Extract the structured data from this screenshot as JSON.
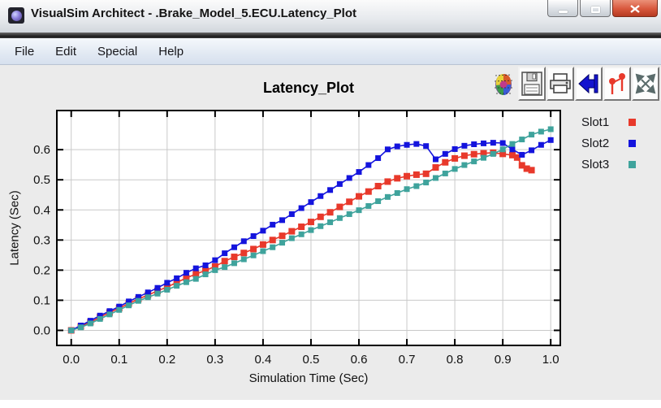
{
  "window": {
    "title": "VisualSim Architect - .Brake_Model_5.ECU.Latency_Plot",
    "controls": {
      "minimize": "minimize",
      "maximize": "maximize",
      "close": "close"
    }
  },
  "menu": {
    "items": [
      "File",
      "Edit",
      "Special",
      "Help"
    ]
  },
  "toolbar": {
    "icons": [
      "palette-icon",
      "save-icon",
      "print-icon",
      "reset-axes-icon",
      "edit-format-icon",
      "fill-plot-icon"
    ]
  },
  "chart_data": {
    "type": "line",
    "title": "Latency_Plot",
    "xlabel": "Simulation Time (Sec)",
    "ylabel": "Latency (Sec)",
    "xlim": [
      -0.03,
      1.02
    ],
    "ylim": [
      -0.05,
      0.73
    ],
    "x_ticks": [
      0.0,
      0.1,
      0.2,
      0.3,
      0.4,
      0.5,
      0.6,
      0.7,
      0.8,
      0.9,
      1.0
    ],
    "y_ticks": [
      0.0,
      0.1,
      0.2,
      0.3,
      0.4,
      0.5,
      0.6
    ],
    "grid": true,
    "legend_position": "right-top",
    "marker": "square",
    "series": [
      {
        "name": "Slot1",
        "color": "#e8392b",
        "points": [
          [
            0.0,
            0.0
          ],
          [
            0.02,
            0.013
          ],
          [
            0.04,
            0.027
          ],
          [
            0.06,
            0.044
          ],
          [
            0.08,
            0.059
          ],
          [
            0.1,
            0.074
          ],
          [
            0.12,
            0.089
          ],
          [
            0.14,
            0.104
          ],
          [
            0.16,
            0.117
          ],
          [
            0.18,
            0.131
          ],
          [
            0.2,
            0.144
          ],
          [
            0.22,
            0.159
          ],
          [
            0.24,
            0.174
          ],
          [
            0.26,
            0.187
          ],
          [
            0.28,
            0.199
          ],
          [
            0.3,
            0.212
          ],
          [
            0.32,
            0.23
          ],
          [
            0.34,
            0.244
          ],
          [
            0.36,
            0.257
          ],
          [
            0.38,
            0.27
          ],
          [
            0.4,
            0.285
          ],
          [
            0.42,
            0.3
          ],
          [
            0.44,
            0.314
          ],
          [
            0.46,
            0.329
          ],
          [
            0.48,
            0.344
          ],
          [
            0.5,
            0.36
          ],
          [
            0.52,
            0.377
          ],
          [
            0.54,
            0.392
          ],
          [
            0.56,
            0.41
          ],
          [
            0.58,
            0.427
          ],
          [
            0.6,
            0.445
          ],
          [
            0.62,
            0.461
          ],
          [
            0.64,
            0.479
          ],
          [
            0.66,
            0.494
          ],
          [
            0.68,
            0.505
          ],
          [
            0.7,
            0.512
          ],
          [
            0.72,
            0.517
          ],
          [
            0.74,
            0.52
          ],
          [
            0.76,
            0.541
          ],
          [
            0.78,
            0.558
          ],
          [
            0.8,
            0.571
          ],
          [
            0.82,
            0.58
          ],
          [
            0.84,
            0.585
          ],
          [
            0.86,
            0.588
          ],
          [
            0.88,
            0.59
          ],
          [
            0.9,
            0.586
          ],
          [
            0.92,
            0.582
          ],
          [
            0.93,
            0.574
          ],
          [
            0.94,
            0.548
          ],
          [
            0.95,
            0.537
          ],
          [
            0.96,
            0.532
          ]
        ]
      },
      {
        "name": "Slot2",
        "color": "#1414dd",
        "points": [
          [
            0.0,
            0.0
          ],
          [
            0.02,
            0.016
          ],
          [
            0.04,
            0.032
          ],
          [
            0.06,
            0.049
          ],
          [
            0.08,
            0.064
          ],
          [
            0.1,
            0.079
          ],
          [
            0.12,
            0.096
          ],
          [
            0.14,
            0.111
          ],
          [
            0.16,
            0.126
          ],
          [
            0.18,
            0.141
          ],
          [
            0.2,
            0.158
          ],
          [
            0.22,
            0.173
          ],
          [
            0.24,
            0.191
          ],
          [
            0.26,
            0.206
          ],
          [
            0.28,
            0.216
          ],
          [
            0.3,
            0.233
          ],
          [
            0.32,
            0.256
          ],
          [
            0.34,
            0.276
          ],
          [
            0.36,
            0.296
          ],
          [
            0.38,
            0.313
          ],
          [
            0.4,
            0.331
          ],
          [
            0.42,
            0.351
          ],
          [
            0.44,
            0.366
          ],
          [
            0.46,
            0.386
          ],
          [
            0.48,
            0.406
          ],
          [
            0.5,
            0.426
          ],
          [
            0.52,
            0.446
          ],
          [
            0.54,
            0.466
          ],
          [
            0.56,
            0.486
          ],
          [
            0.58,
            0.506
          ],
          [
            0.6,
            0.526
          ],
          [
            0.62,
            0.549
          ],
          [
            0.64,
            0.572
          ],
          [
            0.66,
            0.601
          ],
          [
            0.68,
            0.611
          ],
          [
            0.7,
            0.616
          ],
          [
            0.72,
            0.619
          ],
          [
            0.74,
            0.612
          ],
          [
            0.76,
            0.568
          ],
          [
            0.78,
            0.586
          ],
          [
            0.8,
            0.602
          ],
          [
            0.82,
            0.613
          ],
          [
            0.84,
            0.618
          ],
          [
            0.86,
            0.621
          ],
          [
            0.88,
            0.623
          ],
          [
            0.9,
            0.622
          ],
          [
            0.92,
            0.601
          ],
          [
            0.94,
            0.583
          ],
          [
            0.96,
            0.598
          ],
          [
            0.98,
            0.616
          ],
          [
            1.0,
            0.632
          ]
        ]
      },
      {
        "name": "Slot3",
        "color": "#3fa39c",
        "points": [
          [
            0.0,
            0.0
          ],
          [
            0.02,
            0.01
          ],
          [
            0.04,
            0.023
          ],
          [
            0.06,
            0.038
          ],
          [
            0.08,
            0.053
          ],
          [
            0.1,
            0.068
          ],
          [
            0.12,
            0.083
          ],
          [
            0.14,
            0.098
          ],
          [
            0.16,
            0.11
          ],
          [
            0.18,
            0.122
          ],
          [
            0.2,
            0.135
          ],
          [
            0.22,
            0.148
          ],
          [
            0.24,
            0.16
          ],
          [
            0.26,
            0.171
          ],
          [
            0.28,
            0.186
          ],
          [
            0.3,
            0.2
          ],
          [
            0.32,
            0.21
          ],
          [
            0.34,
            0.223
          ],
          [
            0.36,
            0.236
          ],
          [
            0.38,
            0.249
          ],
          [
            0.4,
            0.263
          ],
          [
            0.42,
            0.276
          ],
          [
            0.44,
            0.291
          ],
          [
            0.46,
            0.306
          ],
          [
            0.48,
            0.319
          ],
          [
            0.5,
            0.333
          ],
          [
            0.52,
            0.346
          ],
          [
            0.54,
            0.359
          ],
          [
            0.56,
            0.373
          ],
          [
            0.58,
            0.386
          ],
          [
            0.6,
            0.399
          ],
          [
            0.62,
            0.413
          ],
          [
            0.64,
            0.429
          ],
          [
            0.66,
            0.443
          ],
          [
            0.68,
            0.456
          ],
          [
            0.7,
            0.469
          ],
          [
            0.72,
            0.479
          ],
          [
            0.74,
            0.491
          ],
          [
            0.76,
            0.506
          ],
          [
            0.78,
            0.521
          ],
          [
            0.8,
            0.536
          ],
          [
            0.82,
            0.549
          ],
          [
            0.84,
            0.561
          ],
          [
            0.86,
            0.573
          ],
          [
            0.88,
            0.586
          ],
          [
            0.9,
            0.601
          ],
          [
            0.92,
            0.619
          ],
          [
            0.94,
            0.634
          ],
          [
            0.96,
            0.65
          ],
          [
            0.98,
            0.66
          ],
          [
            1.0,
            0.668
          ]
        ]
      }
    ]
  }
}
